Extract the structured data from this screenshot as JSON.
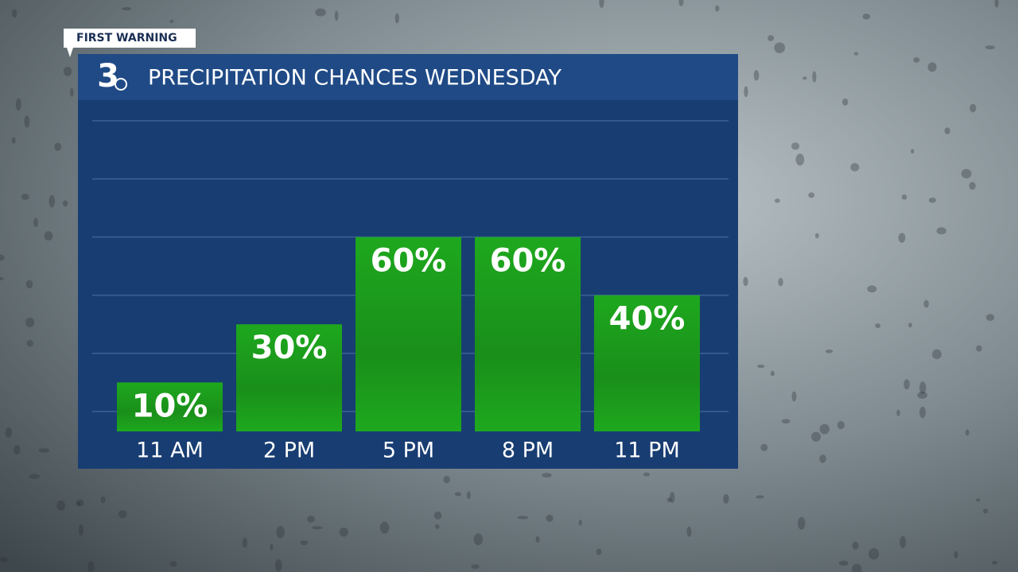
{
  "badge": "FIRST WARNING",
  "logo": "3",
  "chart_data": {
    "type": "bar",
    "title": "PRECIPITATION CHANCES WEDNESDAY",
    "categories": [
      "11 AM",
      "2 PM",
      "5 PM",
      "8 PM",
      "11 PM"
    ],
    "values": [
      10,
      30,
      60,
      60,
      40
    ],
    "value_labels": [
      "10%",
      "30%",
      "60%",
      "60%",
      "40%"
    ],
    "color": "#1ea81e",
    "ylim": [
      0,
      100
    ],
    "yticks": [
      0,
      20,
      40,
      60,
      80,
      100
    ],
    "grid": true
  }
}
